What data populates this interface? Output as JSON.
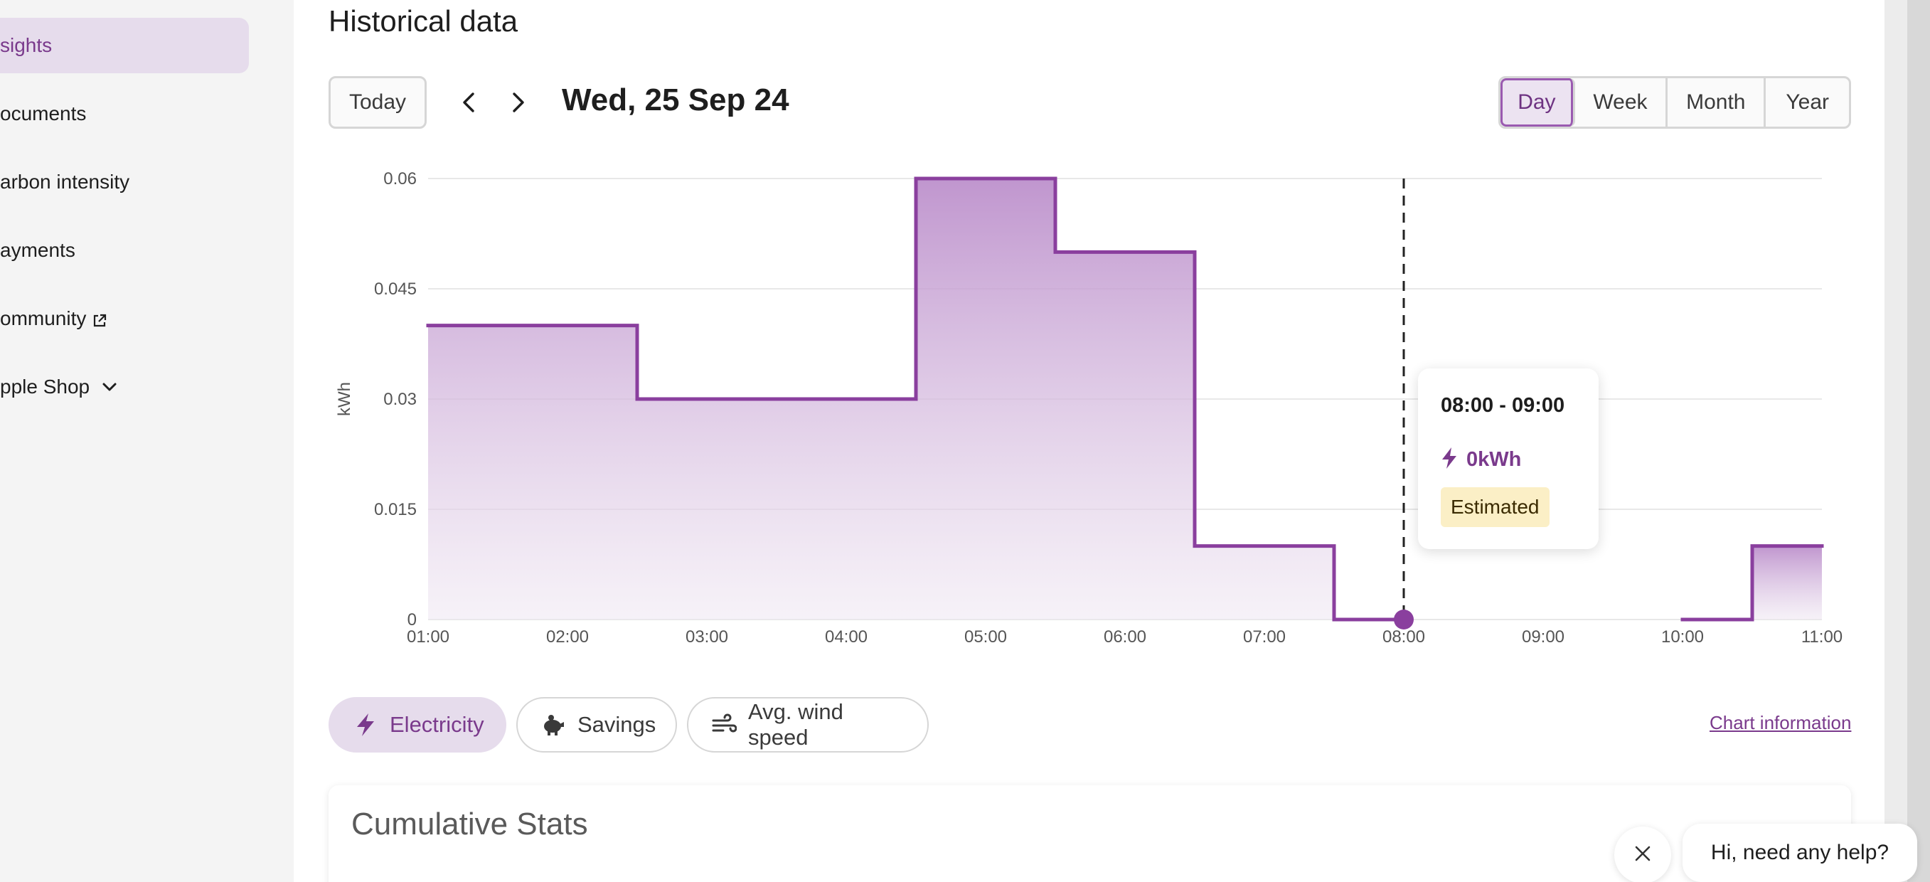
{
  "sidebar": {
    "items": [
      {
        "label": "sights",
        "active": true
      },
      {
        "label": "ocuments",
        "active": false
      },
      {
        "label": "arbon intensity",
        "active": false
      },
      {
        "label": "ayments",
        "active": false
      },
      {
        "label": "ommunity",
        "active": false,
        "external": true
      },
      {
        "label": "pple Shop",
        "active": false,
        "dropdown": true
      }
    ]
  },
  "main": {
    "section_title": "Historical data",
    "today_label": "Today",
    "date_label": "Wed, 25 Sep 24",
    "range_options": [
      "Day",
      "Week",
      "Month",
      "Year"
    ],
    "selected_range": "Day"
  },
  "tooltip": {
    "range": "08:00 - 09:00",
    "value": "0kWh",
    "badge": "Estimated"
  },
  "filters": {
    "electricity": "Electricity",
    "savings": "Savings",
    "wind": "Avg. wind speed",
    "chart_info": "Chart information"
  },
  "stats": {
    "title": "Cumulative Stats"
  },
  "help": {
    "message": "Hi, need any help?"
  },
  "colors": {
    "accent": "#7a3a8c",
    "accent_light": "#e6dcec",
    "badge_bg": "#fbefc6"
  },
  "icons": {
    "prev": "chevron-left-icon",
    "next": "chevron-right-icon",
    "electricity": "lightning-icon",
    "savings": "piggy-bank-icon",
    "wind": "wind-icon",
    "external": "external-link-icon",
    "dropdown": "chevron-down-icon",
    "close": "close-icon"
  },
  "chart_data": {
    "type": "area",
    "step": true,
    "ylabel": "kWh",
    "xlabel": "",
    "yticks": [
      "0",
      "0.015",
      "0.03",
      "0.045",
      "0.06"
    ],
    "xticks": [
      "01:00",
      "02:00",
      "03:00",
      "04:00",
      "05:00",
      "06:00",
      "07:00",
      "08:00",
      "09:00",
      "10:00",
      "11:00"
    ],
    "ylim": [
      0,
      0.06
    ],
    "xlim_hours": [
      1,
      11
    ],
    "segments": [
      {
        "start": 1.0,
        "end": 2.5,
        "value": 0.04
      },
      {
        "start": 2.5,
        "end": 4.5,
        "value": 0.03
      },
      {
        "start": 4.5,
        "end": 5.5,
        "value": 0.06
      },
      {
        "start": 5.5,
        "end": 6.5,
        "value": 0.05
      },
      {
        "start": 6.5,
        "end": 7.5,
        "value": 0.01
      },
      {
        "start": 7.5,
        "end": 8.0,
        "value": 0
      },
      {
        "start": 10.0,
        "end": 10.5,
        "value": 0
      },
      {
        "start": 10.5,
        "end": 11.0,
        "value": 0.01
      }
    ],
    "highlight_hour": 8.0,
    "grid": true
  }
}
